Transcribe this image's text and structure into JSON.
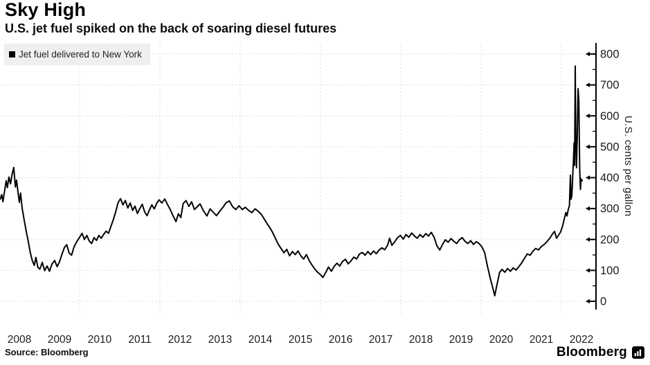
{
  "header": {
    "title": "Sky High",
    "subtitle": "U.S. jet fuel spiked on the back of soaring diesel futures"
  },
  "legend": {
    "label": "Jet fuel delivered to New York",
    "marker": "black-square",
    "marker_color": "#000000",
    "background": "#efefef"
  },
  "footer": {
    "source": "Source: Bloomberg",
    "brand": "Bloomberg",
    "brand_icon": "bloomberg-chart-icon"
  },
  "colors": {
    "line": "#000000",
    "grid": "#dedede",
    "axis": "#000000",
    "text": "#1c1c1c",
    "legend_bg": "#efefef",
    "background": "#ffffff"
  },
  "chart_data": {
    "type": "line",
    "title": "Sky High",
    "subtitle": "U.S. jet fuel spiked on the back of soaring diesel futures",
    "ylabel": "U.S. cents per gallon",
    "xlabel": "",
    "ylim": [
      0,
      800
    ],
    "xlim": [
      2008.0,
      2022.6
    ],
    "y_ticks": [
      0,
      100,
      200,
      300,
      400,
      500,
      600,
      700,
      800
    ],
    "y_minor_tick_step": 50,
    "x_tick_labels": [
      "2008",
      "2009",
      "2010",
      "2011",
      "2012",
      "2013",
      "2014",
      "2015",
      "2016",
      "2017",
      "2018",
      "2019",
      "2020",
      "2021",
      "2022"
    ],
    "x_gridline_years": [
      2010,
      2012,
      2014,
      2016,
      2018,
      2020,
      2022
    ],
    "grid": "dotted-light-gray",
    "legend_position": "top-left",
    "axis_position": "right",
    "series": [
      {
        "name": "Jet fuel delivered to New York",
        "color": "#000000",
        "points": [
          [
            2008.02,
            330
          ],
          [
            2008.06,
            345
          ],
          [
            2008.09,
            322
          ],
          [
            2008.13,
            355
          ],
          [
            2008.17,
            390
          ],
          [
            2008.2,
            368
          ],
          [
            2008.24,
            402
          ],
          [
            2008.28,
            380
          ],
          [
            2008.32,
            412
          ],
          [
            2008.36,
            433
          ],
          [
            2008.4,
            370
          ],
          [
            2008.43,
            392
          ],
          [
            2008.47,
            348
          ],
          [
            2008.5,
            320
          ],
          [
            2008.53,
            350
          ],
          [
            2008.57,
            300
          ],
          [
            2008.62,
            262
          ],
          [
            2008.67,
            226
          ],
          [
            2008.72,
            194
          ],
          [
            2008.77,
            158
          ],
          [
            2008.82,
            132
          ],
          [
            2008.87,
            116
          ],
          [
            2008.91,
            142
          ],
          [
            2008.96,
            110
          ],
          [
            2009.01,
            104
          ],
          [
            2009.07,
            126
          ],
          [
            2009.13,
            99
          ],
          [
            2009.19,
            114
          ],
          [
            2009.25,
            97
          ],
          [
            2009.31,
            120
          ],
          [
            2009.38,
            132
          ],
          [
            2009.44,
            112
          ],
          [
            2009.5,
            128
          ],
          [
            2009.56,
            152
          ],
          [
            2009.62,
            174
          ],
          [
            2009.68,
            183
          ],
          [
            2009.74,
            156
          ],
          [
            2009.8,
            149
          ],
          [
            2009.86,
            176
          ],
          [
            2009.93,
            193
          ],
          [
            2010.0,
            207
          ],
          [
            2010.06,
            220
          ],
          [
            2010.12,
            200
          ],
          [
            2010.18,
            213
          ],
          [
            2010.24,
            195
          ],
          [
            2010.3,
            187
          ],
          [
            2010.36,
            206
          ],
          [
            2010.42,
            197
          ],
          [
            2010.48,
            213
          ],
          [
            2010.54,
            204
          ],
          [
            2010.6,
            217
          ],
          [
            2010.66,
            227
          ],
          [
            2010.72,
            220
          ],
          [
            2010.78,
            242
          ],
          [
            2010.84,
            264
          ],
          [
            2010.9,
            290
          ],
          [
            2010.96,
            320
          ],
          [
            2011.02,
            332
          ],
          [
            2011.08,
            312
          ],
          [
            2011.14,
            326
          ],
          [
            2011.2,
            302
          ],
          [
            2011.26,
            318
          ],
          [
            2011.32,
            294
          ],
          [
            2011.38,
            308
          ],
          [
            2011.44,
            284
          ],
          [
            2011.5,
            300
          ],
          [
            2011.56,
            314
          ],
          [
            2011.62,
            289
          ],
          [
            2011.68,
            277
          ],
          [
            2011.74,
            296
          ],
          [
            2011.8,
            312
          ],
          [
            2011.86,
            299
          ],
          [
            2011.92,
            317
          ],
          [
            2011.98,
            328
          ],
          [
            2012.05,
            318
          ],
          [
            2012.12,
            331
          ],
          [
            2012.19,
            313
          ],
          [
            2012.26,
            296
          ],
          [
            2012.33,
            276
          ],
          [
            2012.4,
            258
          ],
          [
            2012.46,
            283
          ],
          [
            2012.52,
            271
          ],
          [
            2012.58,
            316
          ],
          [
            2012.65,
            326
          ],
          [
            2012.72,
            307
          ],
          [
            2012.79,
            322
          ],
          [
            2012.86,
            297
          ],
          [
            2012.93,
            306
          ],
          [
            2013.0,
            315
          ],
          [
            2013.08,
            294
          ],
          [
            2013.17,
            276
          ],
          [
            2013.25,
            299
          ],
          [
            2013.33,
            288
          ],
          [
            2013.41,
            277
          ],
          [
            2013.49,
            291
          ],
          [
            2013.57,
            304
          ],
          [
            2013.65,
            319
          ],
          [
            2013.73,
            325
          ],
          [
            2013.81,
            306
          ],
          [
            2013.89,
            297
          ],
          [
            2013.97,
            309
          ],
          [
            2014.05,
            297
          ],
          [
            2014.13,
            304
          ],
          [
            2014.21,
            294
          ],
          [
            2014.29,
            287
          ],
          [
            2014.37,
            299
          ],
          [
            2014.45,
            291
          ],
          [
            2014.53,
            281
          ],
          [
            2014.6,
            266
          ],
          [
            2014.67,
            251
          ],
          [
            2014.74,
            238
          ],
          [
            2014.81,
            222
          ],
          [
            2014.88,
            203
          ],
          [
            2014.95,
            184
          ],
          [
            2015.02,
            170
          ],
          [
            2015.09,
            157
          ],
          [
            2015.16,
            168
          ],
          [
            2015.23,
            147
          ],
          [
            2015.3,
            161
          ],
          [
            2015.37,
            151
          ],
          [
            2015.44,
            163
          ],
          [
            2015.51,
            147
          ],
          [
            2015.58,
            137
          ],
          [
            2015.65,
            151
          ],
          [
            2015.72,
            131
          ],
          [
            2015.79,
            117
          ],
          [
            2015.86,
            104
          ],
          [
            2015.93,
            94
          ],
          [
            2016.0,
            86
          ],
          [
            2016.06,
            77
          ],
          [
            2016.13,
            93
          ],
          [
            2016.2,
            111
          ],
          [
            2016.27,
            97
          ],
          [
            2016.34,
            113
          ],
          [
            2016.41,
            123
          ],
          [
            2016.48,
            114
          ],
          [
            2016.55,
            129
          ],
          [
            2016.62,
            136
          ],
          [
            2016.69,
            121
          ],
          [
            2016.76,
            131
          ],
          [
            2016.83,
            143
          ],
          [
            2016.9,
            137
          ],
          [
            2016.97,
            153
          ],
          [
            2017.04,
            158
          ],
          [
            2017.11,
            149
          ],
          [
            2017.18,
            161
          ],
          [
            2017.25,
            151
          ],
          [
            2017.32,
            163
          ],
          [
            2017.39,
            154
          ],
          [
            2017.46,
            166
          ],
          [
            2017.53,
            173
          ],
          [
            2017.6,
            167
          ],
          [
            2017.67,
            181
          ],
          [
            2017.72,
            204
          ],
          [
            2017.78,
            181
          ],
          [
            2017.85,
            193
          ],
          [
            2017.92,
            206
          ],
          [
            2017.99,
            213
          ],
          [
            2018.06,
            201
          ],
          [
            2018.13,
            216
          ],
          [
            2018.2,
            207
          ],
          [
            2018.27,
            221
          ],
          [
            2018.34,
            211
          ],
          [
            2018.41,
            204
          ],
          [
            2018.48,
            216
          ],
          [
            2018.55,
            207
          ],
          [
            2018.62,
            219
          ],
          [
            2018.69,
            211
          ],
          [
            2018.76,
            223
          ],
          [
            2018.83,
            207
          ],
          [
            2018.9,
            179
          ],
          [
            2018.97,
            166
          ],
          [
            2019.04,
            184
          ],
          [
            2019.11,
            199
          ],
          [
            2019.18,
            191
          ],
          [
            2019.25,
            203
          ],
          [
            2019.32,
            194
          ],
          [
            2019.39,
            187
          ],
          [
            2019.46,
            199
          ],
          [
            2019.53,
            206
          ],
          [
            2019.6,
            194
          ],
          [
            2019.67,
            187
          ],
          [
            2019.74,
            196
          ],
          [
            2019.81,
            184
          ],
          [
            2019.88,
            193
          ],
          [
            2019.95,
            187
          ],
          [
            2020.02,
            176
          ],
          [
            2020.09,
            157
          ],
          [
            2020.16,
            112
          ],
          [
            2020.23,
            74
          ],
          [
            2020.29,
            44
          ],
          [
            2020.34,
            18
          ],
          [
            2020.4,
            57
          ],
          [
            2020.46,
            93
          ],
          [
            2020.52,
            103
          ],
          [
            2020.59,
            94
          ],
          [
            2020.66,
            106
          ],
          [
            2020.73,
            97
          ],
          [
            2020.8,
            108
          ],
          [
            2020.87,
            101
          ],
          [
            2020.94,
            112
          ],
          [
            2021.01,
            124
          ],
          [
            2021.08,
            139
          ],
          [
            2021.15,
            153
          ],
          [
            2021.22,
            149
          ],
          [
            2021.29,
            162
          ],
          [
            2021.36,
            171
          ],
          [
            2021.43,
            166
          ],
          [
            2021.5,
            177
          ],
          [
            2021.57,
            184
          ],
          [
            2021.64,
            193
          ],
          [
            2021.71,
            204
          ],
          [
            2021.78,
            218
          ],
          [
            2021.83,
            226
          ],
          [
            2021.88,
            204
          ],
          [
            2021.93,
            214
          ],
          [
            2021.98,
            224
          ],
          [
            2022.03,
            243
          ],
          [
            2022.07,
            266
          ],
          [
            2022.11,
            287
          ],
          [
            2022.14,
            276
          ],
          [
            2022.17,
            297
          ],
          [
            2022.2,
            309
          ],
          [
            2022.225,
            408
          ],
          [
            2022.24,
            330
          ],
          [
            2022.26,
            342
          ],
          [
            2022.28,
            398
          ],
          [
            2022.3,
            455
          ],
          [
            2022.315,
            512
          ],
          [
            2022.33,
            440
          ],
          [
            2022.345,
            761
          ],
          [
            2022.36,
            515
          ],
          [
            2022.375,
            432
          ],
          [
            2022.395,
            530
          ],
          [
            2022.415,
            688
          ],
          [
            2022.435,
            648
          ],
          [
            2022.455,
            430
          ],
          [
            2022.475,
            362
          ],
          [
            2022.49,
            396
          ],
          [
            2022.52,
            390
          ]
        ]
      }
    ]
  }
}
